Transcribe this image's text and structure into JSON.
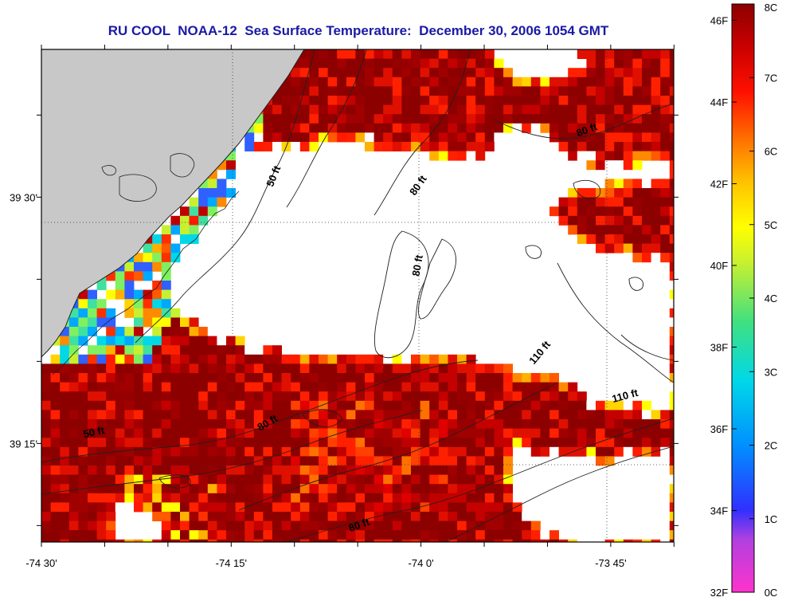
{
  "title": "RU COOL  NOAA-12  Sea Surface Temperature:  December 30, 2006 1054 GMT",
  "map": {
    "lon_labels": [
      {
        "text": "-74 30'",
        "lon": -74.5
      },
      {
        "text": "-74 15'",
        "lon": -74.25
      },
      {
        "text": "-74 0'",
        "lon": -74.0
      },
      {
        "text": "-73 45'",
        "lon": -73.75
      }
    ],
    "lat_labels": [
      {
        "text": "39 30'",
        "lat": 39.5
      },
      {
        "text": "39 15'",
        "lat": 39.25
      }
    ],
    "lon_range": [
      -74.5,
      -73.667
    ],
    "lat_range": [
      39.15,
      39.65
    ],
    "contour_labels": [
      {
        "text": "50 ft",
        "lon": -74.19,
        "lat": 39.52,
        "angle": -68
      },
      {
        "text": "80 ft",
        "lon": -74.0,
        "lat": 39.51,
        "angle": -55
      },
      {
        "text": "80 ft",
        "lon": -73.78,
        "lat": 39.565,
        "angle": -20
      },
      {
        "text": "80 ft",
        "lon": -74.0,
        "lat": 39.43,
        "angle": -80
      },
      {
        "text": "110 ft",
        "lon": -73.84,
        "lat": 39.34,
        "angle": -50
      },
      {
        "text": "110 ft",
        "lon": -73.73,
        "lat": 39.295,
        "angle": -15
      },
      {
        "text": "50 ft",
        "lon": -74.43,
        "lat": 39.258,
        "angle": -12
      },
      {
        "text": "80 ft",
        "lon": -74.2,
        "lat": 39.268,
        "angle": -30
      },
      {
        "text": "80 ft",
        "lon": -74.08,
        "lat": 39.164,
        "angle": -20
      }
    ],
    "colors": {
      "land": "#c8c8c8",
      "clouds": "#ffffff",
      "warm": "#8c0000",
      "coastline": "#202020",
      "border": "#000000"
    }
  },
  "colorbar": {
    "fahrenheit_labels": [
      "46F",
      "44F",
      "42F",
      "40F",
      "38F",
      "36F",
      "34F",
      "32F"
    ],
    "celsius_labels": [
      "8C",
      "7C",
      "6C",
      "5C",
      "4C",
      "3C",
      "2C",
      "1C",
      "0C"
    ],
    "range_c": [
      0,
      8
    ],
    "gradient_colors": [
      "#ff33cc",
      "#a040e0",
      "#3030ff",
      "#0090ff",
      "#00d8e8",
      "#40e080",
      "#c8f030",
      "#ffff00",
      "#ffc000",
      "#ff7000",
      "#ff1000",
      "#c80000",
      "#8c0000"
    ]
  }
}
